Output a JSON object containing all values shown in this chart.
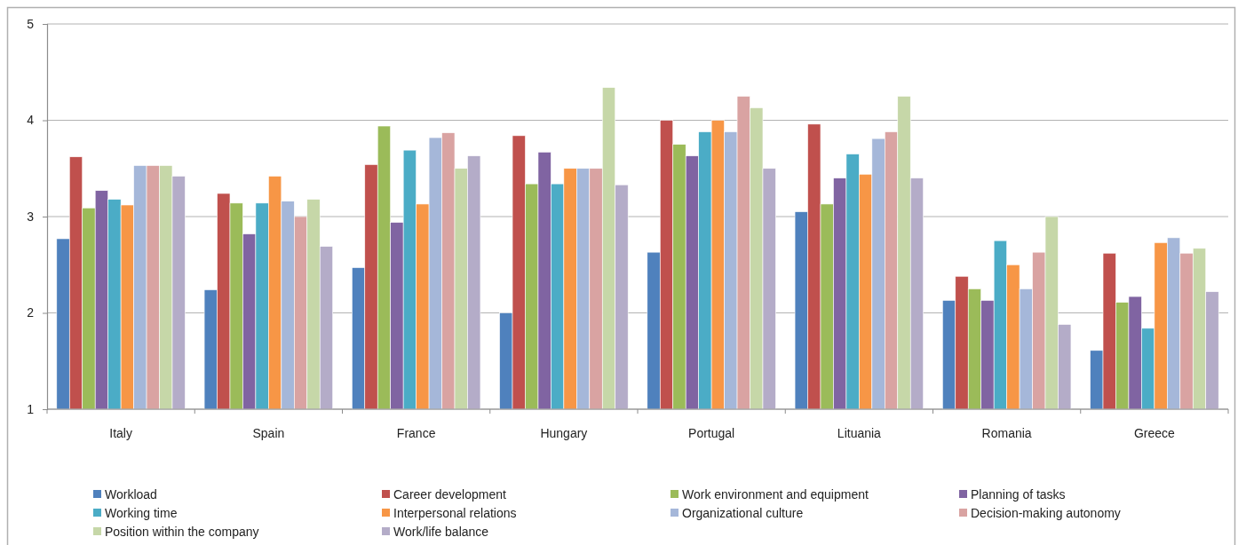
{
  "chart_data": {
    "type": "bar",
    "categories": [
      "Italy",
      "Spain",
      "France",
      "Hungary",
      "Portugal",
      "Lituania",
      "Romania",
      "Greece"
    ],
    "series": [
      {
        "name": "Workload",
        "color": "#4f81bd",
        "values": [
          2.77,
          2.24,
          2.47,
          2.0,
          2.63,
          3.05,
          2.13,
          1.61
        ]
      },
      {
        "name": "Career development",
        "color": "#c0504d",
        "values": [
          3.62,
          3.24,
          3.54,
          3.84,
          4.0,
          3.96,
          2.38,
          2.62
        ]
      },
      {
        "name": "Work environment and equipment",
        "color": "#9bbb59",
        "values": [
          3.09,
          3.14,
          3.94,
          3.34,
          3.75,
          3.13,
          2.25,
          2.11
        ]
      },
      {
        "name": "Planning of tasks",
        "color": "#8064a2",
        "values": [
          3.27,
          2.82,
          2.94,
          3.67,
          3.63,
          3.4,
          2.13,
          2.17
        ]
      },
      {
        "name": "Working time",
        "color": "#4bacc6",
        "values": [
          3.18,
          3.14,
          3.69,
          3.34,
          3.88,
          3.65,
          2.75,
          1.84
        ]
      },
      {
        "name": "Interpersonal relations",
        "color": "#f79646",
        "values": [
          3.12,
          3.42,
          3.13,
          3.5,
          4.0,
          3.44,
          2.5,
          2.73
        ]
      },
      {
        "name": "Organizational culture",
        "color": "#a5b7d9",
        "values": [
          3.53,
          3.16,
          3.82,
          3.5,
          3.88,
          3.81,
          2.25,
          2.78
        ]
      },
      {
        "name": "Decision-making autonomy",
        "color": "#d9a3a2",
        "values": [
          3.53,
          3.0,
          3.87,
          3.5,
          4.25,
          3.88,
          2.63,
          2.62
        ]
      },
      {
        "name": "Position within the company",
        "color": "#c6d7a8",
        "values": [
          3.53,
          3.18,
          3.5,
          4.34,
          4.13,
          4.25,
          3.0,
          2.67
        ]
      },
      {
        "name": "Work/life balance",
        "color": "#b4acc8",
        "values": [
          3.42,
          2.69,
          3.63,
          3.33,
          3.5,
          3.4,
          1.88,
          2.22
        ]
      }
    ],
    "ylim": [
      1,
      5
    ],
    "yticks": [
      1,
      2,
      3,
      4,
      5
    ],
    "grid": "y",
    "legend": "bottom"
  }
}
